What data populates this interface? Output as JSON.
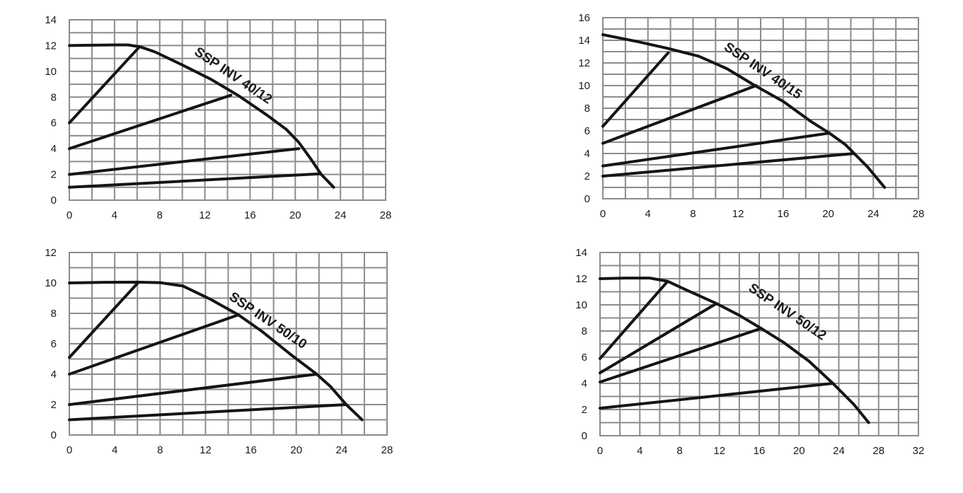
{
  "chart_data": [
    {
      "type": "line",
      "title": "",
      "label": "SSP INV 40/12",
      "xlim": [
        0,
        28
      ],
      "ylim": [
        0,
        14
      ],
      "x_ticks": [
        "0",
        "4",
        "8",
        "12",
        "16",
        "20",
        "24",
        "28"
      ],
      "y_ticks": [
        "0",
        "2",
        "4",
        "6",
        "8",
        "10",
        "12",
        "14"
      ],
      "grid": true,
      "series": [
        {
          "points": [
            [
              0,
              12
            ],
            [
              2,
              12.03
            ],
            [
              4,
              12.05
            ],
            [
              5.2,
              12.05
            ],
            [
              6.3,
              11.9
            ],
            [
              7.6,
              11.5
            ],
            [
              10,
              10.5
            ],
            [
              12.5,
              9.4
            ],
            [
              15,
              8.1
            ],
            [
              17.5,
              6.6
            ],
            [
              19.2,
              5.5
            ],
            [
              20.3,
              4.5
            ],
            [
              21.3,
              3.3
            ],
            [
              22.3,
              2.0
            ],
            [
              23.4,
              1.0
            ]
          ]
        },
        {
          "points": [
            [
              0,
              6
            ],
            [
              6.2,
              11.9
            ]
          ]
        },
        {
          "points": [
            [
              0,
              4
            ],
            [
              14.3,
              8.15
            ]
          ]
        },
        {
          "points": [
            [
              0,
              2
            ],
            [
              20.3,
              4.0
            ]
          ]
        },
        {
          "points": [
            [
              0,
              1
            ],
            [
              22.2,
              2.05
            ]
          ]
        }
      ]
    },
    {
      "type": "line",
      "title": "",
      "label": "SSP INV 40/15",
      "xlim": [
        0,
        28
      ],
      "ylim": [
        0,
        16
      ],
      "x_ticks": [
        "0",
        "4",
        "8",
        "12",
        "16",
        "20",
        "24",
        "28"
      ],
      "y_ticks": [
        "0",
        "2",
        "4",
        "6",
        "8",
        "10",
        "12",
        "14",
        "16"
      ],
      "grid": true,
      "series": [
        {
          "points": [
            [
              0,
              14.5
            ],
            [
              3,
              13.9
            ],
            [
              5.7,
              13.3
            ],
            [
              8.5,
              12.6
            ],
            [
              11,
              11.5
            ],
            [
              13.5,
              10.0
            ],
            [
              16,
              8.6
            ],
            [
              18.5,
              6.8
            ],
            [
              20.1,
              5.8
            ],
            [
              21.5,
              4.8
            ],
            [
              22.3,
              4.0
            ],
            [
              23.5,
              2.8
            ],
            [
              25,
              1.0
            ]
          ]
        },
        {
          "points": [
            [
              0,
              6.4
            ],
            [
              5.8,
              12.9
            ]
          ]
        },
        {
          "points": [
            [
              0,
              4.9
            ],
            [
              13.6,
              10.0
            ]
          ]
        },
        {
          "points": [
            [
              0,
              2.9
            ],
            [
              20.1,
              5.8
            ]
          ]
        },
        {
          "points": [
            [
              0,
              2.0
            ],
            [
              22.3,
              4.0
            ]
          ]
        }
      ]
    },
    {
      "type": "line",
      "title": "",
      "label": "SSP INV 50/10",
      "xlim": [
        0,
        28
      ],
      "ylim": [
        0,
        12
      ],
      "x_ticks": [
        "0",
        "4",
        "8",
        "12",
        "16",
        "20",
        "24",
        "28"
      ],
      "y_ticks": [
        "0",
        "2",
        "4",
        "6",
        "8",
        "10",
        "12"
      ],
      "grid": true,
      "series": [
        {
          "points": [
            [
              0,
              10
            ],
            [
              3,
              10.04
            ],
            [
              6,
              10.05
            ],
            [
              8,
              10.02
            ],
            [
              10,
              9.8
            ],
            [
              12.5,
              8.9
            ],
            [
              14.9,
              7.9
            ],
            [
              17,
              6.8
            ],
            [
              19.5,
              5.3
            ],
            [
              21.8,
              4.0
            ],
            [
              23,
              3.2
            ],
            [
              24.4,
              2.0
            ],
            [
              25.8,
              1.0
            ]
          ]
        },
        {
          "points": [
            [
              0,
              5.1
            ],
            [
              6.1,
              10.05
            ]
          ]
        },
        {
          "points": [
            [
              0,
              4.0
            ],
            [
              14.9,
              7.9
            ]
          ]
        },
        {
          "points": [
            [
              0,
              2.0
            ],
            [
              21.8,
              4.0
            ]
          ]
        },
        {
          "points": [
            [
              0,
              1.0
            ],
            [
              24.4,
              2.0
            ]
          ]
        }
      ]
    },
    {
      "type": "line",
      "title": "",
      "label": "SSP INV 50/12",
      "xlim": [
        0,
        32
      ],
      "ylim": [
        0,
        14
      ],
      "x_ticks": [
        "0",
        "4",
        "8",
        "12",
        "16",
        "20",
        "24",
        "28",
        "32"
      ],
      "y_ticks": [
        "0",
        "2",
        "4",
        "6",
        "8",
        "10",
        "12",
        "14"
      ],
      "grid": true,
      "series": [
        {
          "points": [
            [
              0,
              12
            ],
            [
              2.5,
              12.05
            ],
            [
              5,
              12.05
            ],
            [
              6.8,
              11.8
            ],
            [
              8.5,
              11.2
            ],
            [
              11.7,
              10.1
            ],
            [
              14,
              9.2
            ],
            [
              16.2,
              8.2
            ],
            [
              18.5,
              7.1
            ],
            [
              21,
              5.7
            ],
            [
              23.4,
              4.0
            ],
            [
              25.5,
              2.4
            ],
            [
              27,
              1.0
            ]
          ]
        },
        {
          "points": [
            [
              0,
              5.9
            ],
            [
              6.8,
              11.8
            ]
          ]
        },
        {
          "points": [
            [
              0,
              4.8
            ],
            [
              11.7,
              10.1
            ]
          ]
        },
        {
          "points": [
            [
              0,
              4.1
            ],
            [
              16.2,
              8.2
            ]
          ]
        },
        {
          "points": [
            [
              0,
              2.1
            ],
            [
              23.4,
              4.0
            ]
          ]
        }
      ]
    }
  ]
}
